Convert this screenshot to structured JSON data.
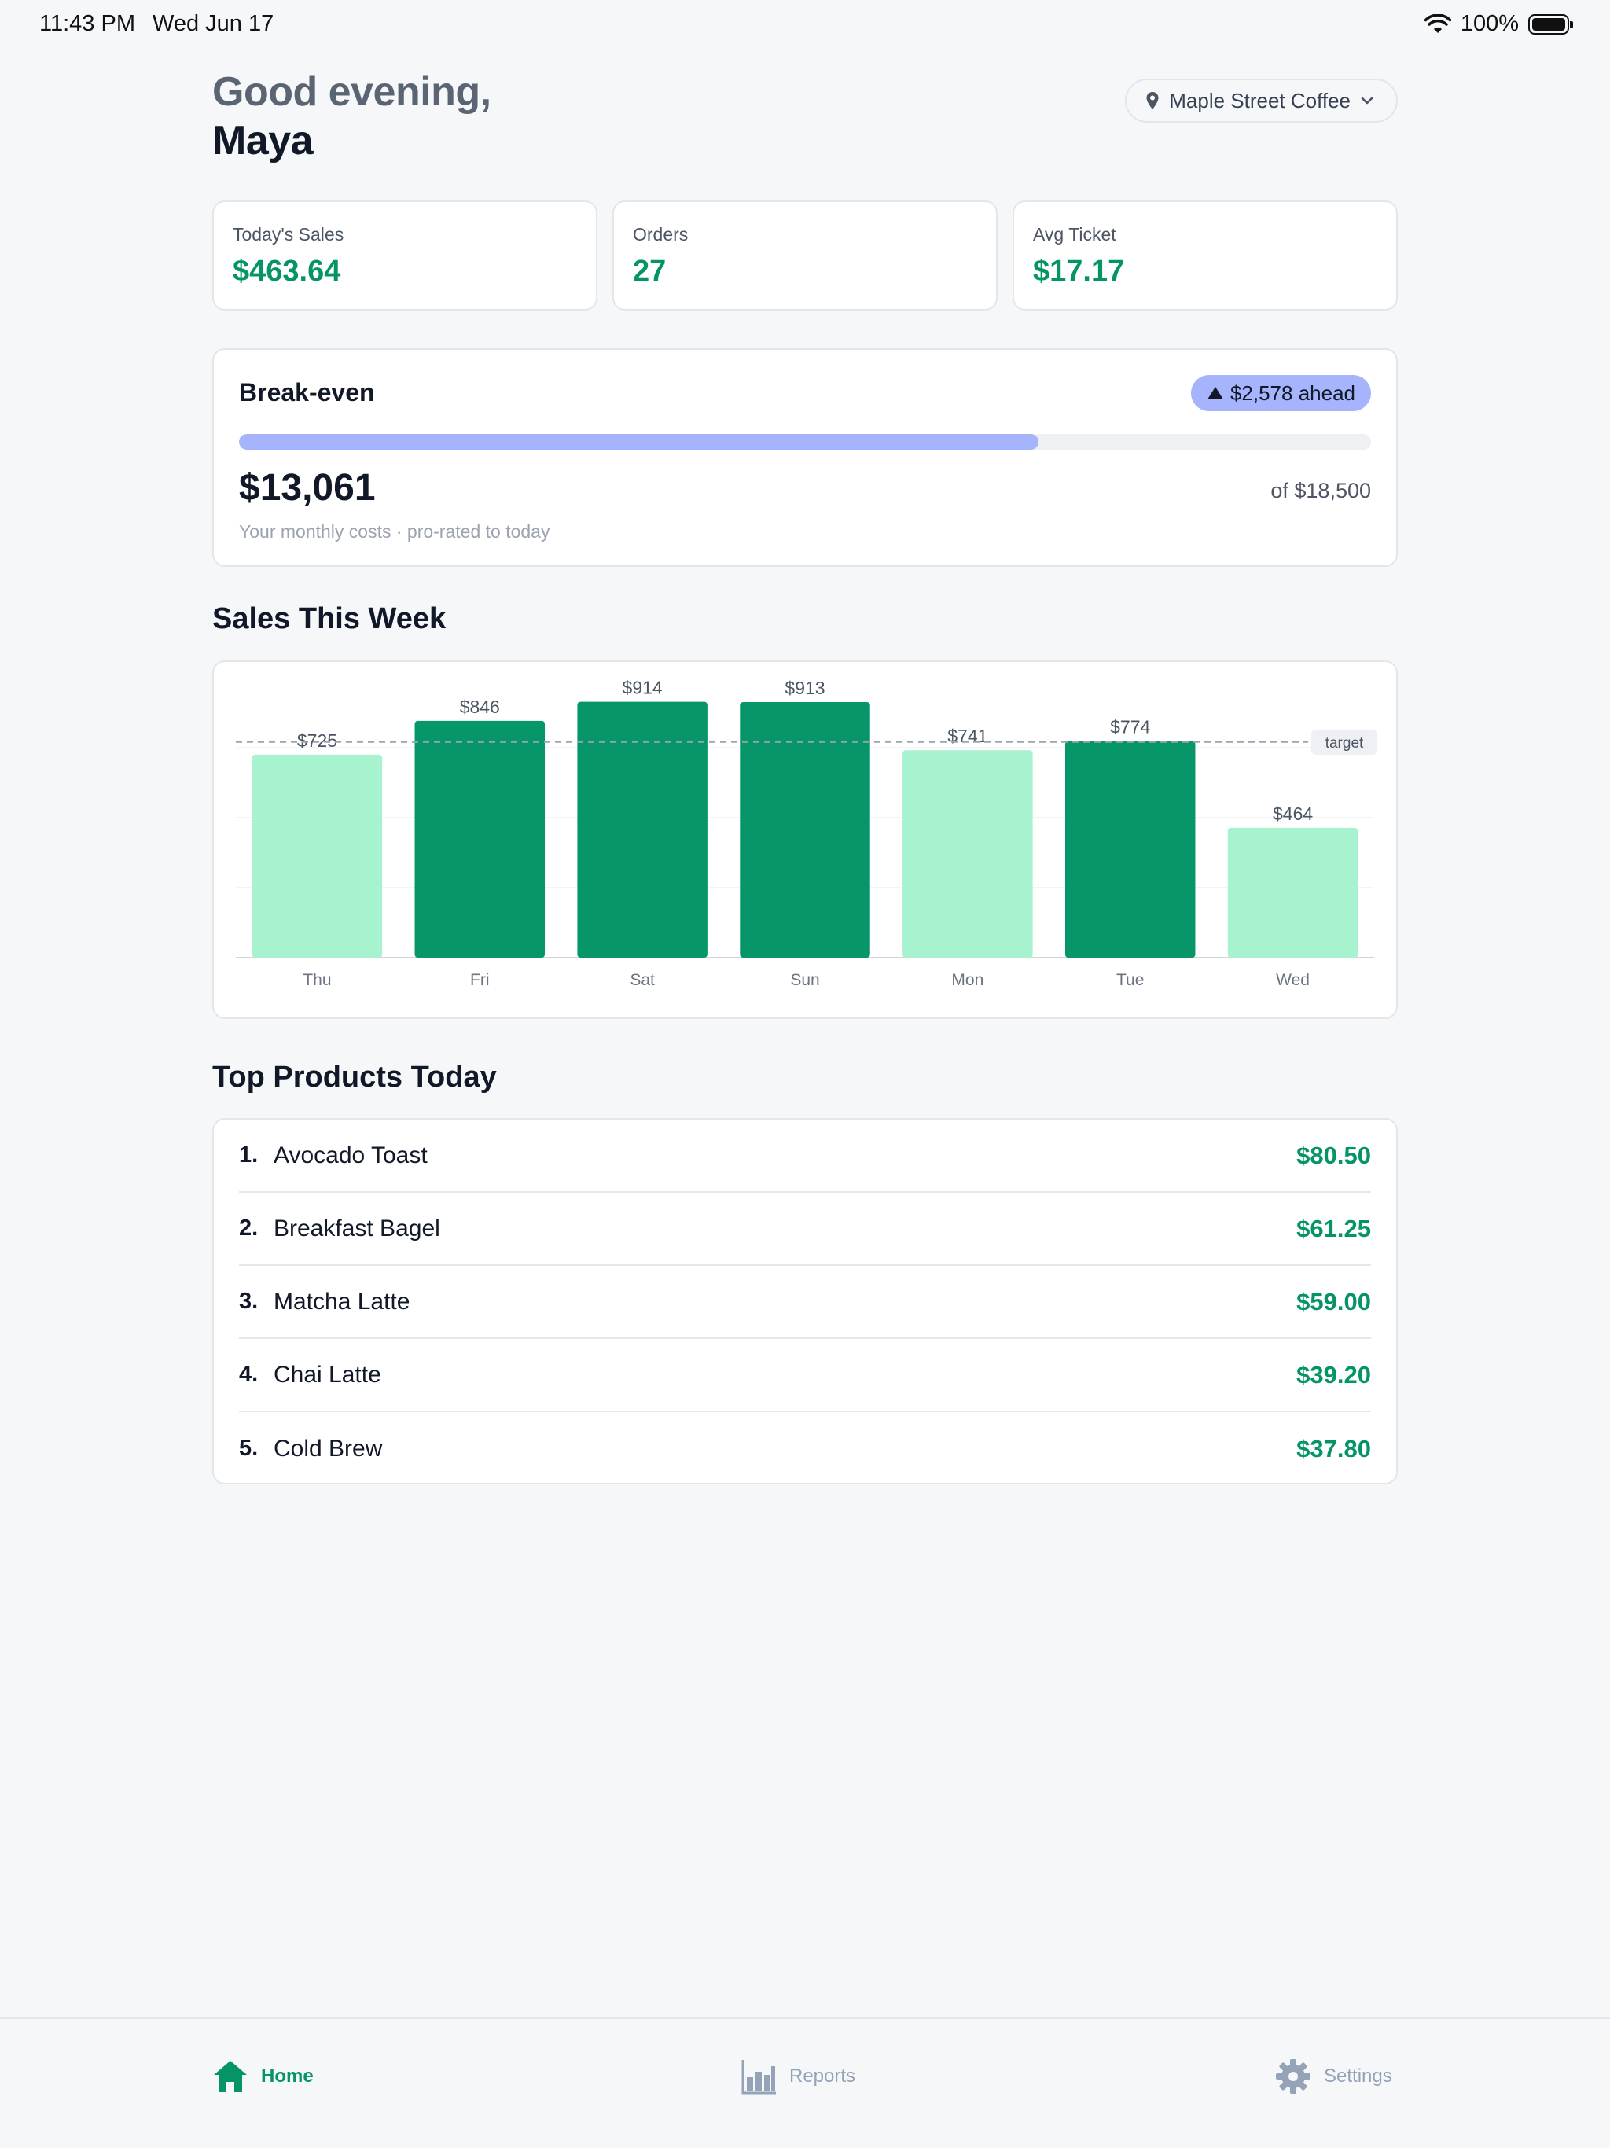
{
  "status_bar": {
    "time": "11:43 PM",
    "date": "Wed Jun 17",
    "battery": "100%"
  },
  "header": {
    "greeting_line1": "Good evening,",
    "greeting_line2": "Maya",
    "store_name": "Maple Street Coffee"
  },
  "stats": [
    {
      "label": "Today's Sales",
      "value": "$463.64"
    },
    {
      "label": "Orders",
      "value": "27"
    },
    {
      "label": "Avg Ticket",
      "value": "$17.17"
    }
  ],
  "breakeven": {
    "title": "Break-even",
    "badge": "$2,578 ahead",
    "amount": "$13,061",
    "of_text": "of $18,500",
    "subtitle": "Your monthly costs · pro-rated to today",
    "progress": 0.706
  },
  "weekly_sales": {
    "section_title": "Sales This Week",
    "target_label": "target"
  },
  "chart_data": {
    "type": "bar",
    "categories": [
      "Thu",
      "Fri",
      "Sat",
      "Sun",
      "Mon",
      "Tue",
      "Wed"
    ],
    "values": [
      725,
      846,
      914,
      913,
      741,
      774,
      464
    ],
    "value_labels": [
      "$725",
      "$846",
      "$914",
      "$913",
      "$741",
      "$774",
      "$464"
    ],
    "target": 770,
    "ylim": [
      0,
      1000
    ],
    "above_target_color": "#079669",
    "below_target_color": "#a7f3d0",
    "grid": true
  },
  "top_products": {
    "section_title": "Top Products Today",
    "items": [
      {
        "rank": "1.",
        "name": "Avocado Toast",
        "value": "$80.50"
      },
      {
        "rank": "2.",
        "name": "Breakfast Bagel",
        "value": "$61.25"
      },
      {
        "rank": "3.",
        "name": "Matcha Latte",
        "value": "$59.00"
      },
      {
        "rank": "4.",
        "name": "Chai Latte",
        "value": "$39.20"
      },
      {
        "rank": "5.",
        "name": "Cold Brew",
        "value": "$37.80"
      }
    ]
  },
  "tabs": [
    {
      "label": "Home",
      "icon": "home-icon"
    },
    {
      "label": "Reports",
      "icon": "bar-chart-icon"
    },
    {
      "label": "Settings",
      "icon": "gear-icon"
    }
  ],
  "colors": {
    "accent": "#059467",
    "progress": "#a5b4fc"
  }
}
